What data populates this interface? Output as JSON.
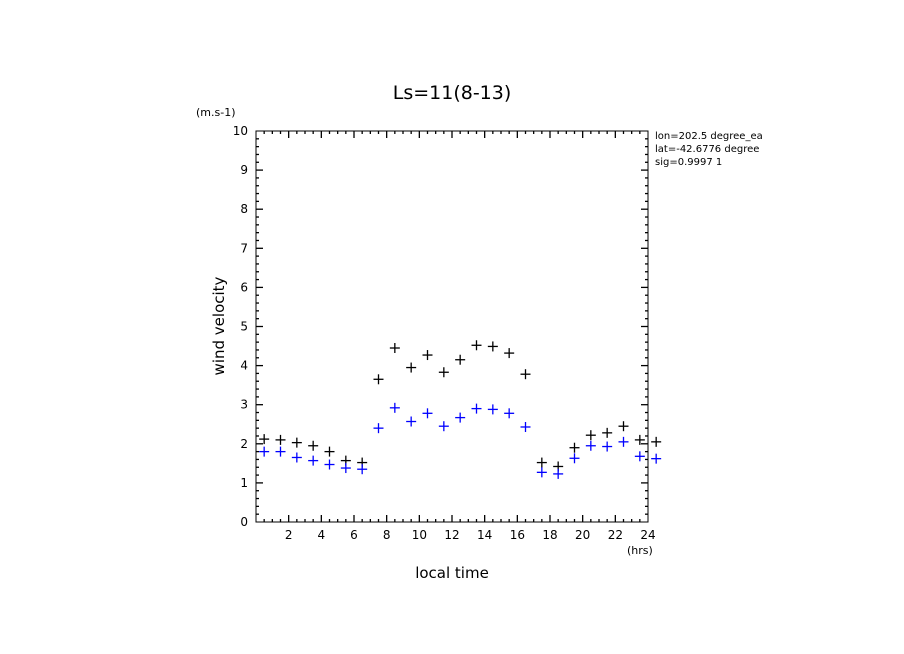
{
  "chart_data": {
    "type": "scatter",
    "title": "Ls=11(8-13)",
    "xlabel": "local time",
    "ylabel": "wind velocity",
    "xunit": "(hrs)",
    "yunit": "(m.s-1)",
    "xlim": [
      0,
      24
    ],
    "ylim": [
      0,
      10
    ],
    "xticks": [
      "2",
      "4",
      "6",
      "8",
      "10",
      "12",
      "14",
      "16",
      "18",
      "20",
      "22",
      "24"
    ],
    "yticks": [
      "0",
      "1",
      "2",
      "3",
      "4",
      "5",
      "6",
      "7",
      "8",
      "9",
      "10"
    ],
    "grid": false,
    "legend": "none",
    "annotations": [
      "lon=202.5 degree_ea",
      "lat=-42.6776 degree",
      "sig=0.9997 1"
    ],
    "x": [
      0.5,
      1.5,
      2.5,
      3.5,
      4.5,
      5.5,
      6.5,
      7.5,
      8.5,
      9.5,
      10.5,
      11.5,
      12.5,
      13.5,
      14.5,
      15.5,
      16.5,
      17.5,
      18.5,
      19.5,
      20.5,
      21.5,
      22.5,
      23.5,
      24.5
    ],
    "series": [
      {
        "color": "#000000",
        "values": [
          2.12,
          2.1,
          2.03,
          1.95,
          1.8,
          1.57,
          1.52,
          3.65,
          4.45,
          3.95,
          4.27,
          3.83,
          4.15,
          4.52,
          4.49,
          4.32,
          3.78,
          1.52,
          1.42,
          1.9,
          2.22,
          2.28,
          2.45,
          2.1,
          2.05
        ]
      },
      {
        "color": "#0000ff",
        "values": [
          1.8,
          1.8,
          1.65,
          1.57,
          1.47,
          1.38,
          1.35,
          2.4,
          2.92,
          2.57,
          2.78,
          2.45,
          2.67,
          2.9,
          2.88,
          2.78,
          2.43,
          1.27,
          1.23,
          1.63,
          1.95,
          1.93,
          2.05,
          1.68,
          1.62
        ]
      }
    ]
  }
}
